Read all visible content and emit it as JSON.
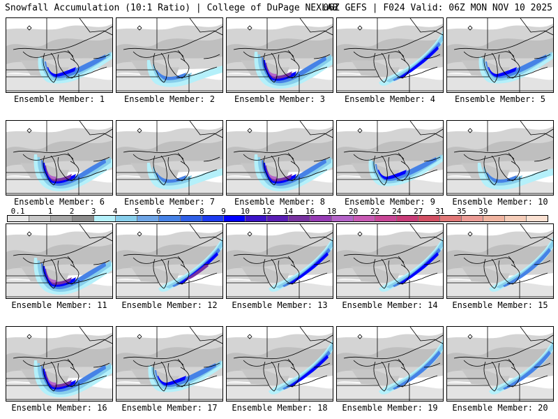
{
  "header": {
    "title": "Snowfall Accumulation (10:1 Ratio) | College of DuPage NEXLAB",
    "run_info": "06Z GEFS | F024 Valid: 06Z MON NOV 10 2025"
  },
  "members": [
    {
      "label": "Ensemble Member: 1",
      "snow": "lakeshore-east",
      "intensity": 2
    },
    {
      "label": "Ensemble Member: 2",
      "snow": "south-shore",
      "intensity": 1
    },
    {
      "label": "Ensemble Member: 3",
      "snow": "heavy-lake",
      "intensity": 3
    },
    {
      "label": "Ensemble Member: 4",
      "snow": "ne-band",
      "intensity": 2
    },
    {
      "label": "Ensemble Member: 5",
      "snow": "lakeshore-east",
      "intensity": 2
    },
    {
      "label": "Ensemble Member: 6",
      "snow": "heavy-lake",
      "intensity": 3
    },
    {
      "label": "Ensemble Member: 7",
      "snow": "south-shore",
      "intensity": 1
    },
    {
      "label": "Ensemble Member: 8",
      "snow": "heavy-lake",
      "intensity": 3
    },
    {
      "label": "Ensemble Member: 9",
      "snow": "lakeshore-east",
      "intensity": 2
    },
    {
      "label": "Ensemble Member: 10",
      "snow": "south-shore",
      "intensity": 1
    },
    {
      "label": "Ensemble Member: 11",
      "snow": "heavy-lake",
      "intensity": 3
    },
    {
      "label": "Ensemble Member: 12",
      "snow": "ne-band",
      "intensity": 3
    },
    {
      "label": "Ensemble Member: 13",
      "snow": "ne-band",
      "intensity": 2
    },
    {
      "label": "Ensemble Member: 14",
      "snow": "ne-band",
      "intensity": 2
    },
    {
      "label": "Ensemble Member: 15",
      "snow": "ne-band",
      "intensity": 1
    },
    {
      "label": "Ensemble Member: 16",
      "snow": "heavy-lake",
      "intensity": 3
    },
    {
      "label": "Ensemble Member: 17",
      "snow": "lakeshore-east",
      "intensity": 2
    },
    {
      "label": "Ensemble Member: 18",
      "snow": "ne-band",
      "intensity": 2
    },
    {
      "label": "Ensemble Member: 19",
      "snow": "ne-band",
      "intensity": 1
    },
    {
      "label": "Ensemble Member: 20",
      "snow": "ne-band",
      "intensity": 1
    }
  ],
  "colorbar": {
    "labels": [
      "0.1",
      "1",
      "2",
      "3",
      "4",
      "5",
      "6",
      "7",
      "8",
      "9",
      "10",
      "12",
      "14",
      "16",
      "18",
      "20",
      "22",
      "24",
      "27",
      "31",
      "35",
      "39"
    ],
    "colors": [
      "#e6e6e6",
      "#c8c8c8",
      "#a6a6a6",
      "#8c8c8c",
      "#b4f0fa",
      "#87ceeb",
      "#6ea5e6",
      "#4682e6",
      "#3060e6",
      "#1e3cf0",
      "#0000ff",
      "#3c14c8",
      "#5a1eb4",
      "#7832a0",
      "#963cb4",
      "#b464c8",
      "#c85ab4",
      "#c84696",
      "#c83c78",
      "#d25064",
      "#e17878",
      "#eb9c96",
      "#f0b4a0",
      "#f5cdb9",
      "#fae1d2"
    ]
  }
}
